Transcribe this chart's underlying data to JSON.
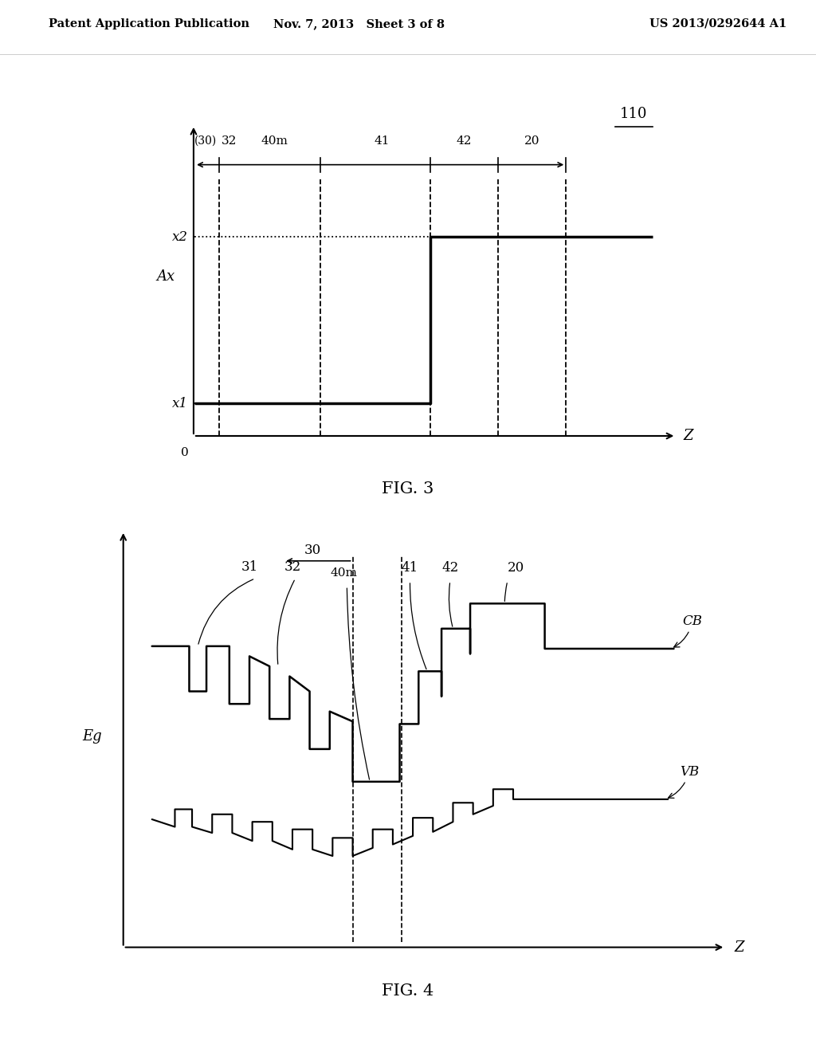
{
  "bg_color": "#ffffff",
  "header_left": "Patent Application Publication",
  "header_mid": "Nov. 7, 2013   Sheet 3 of 8",
  "header_right": "US 2013/0292644 A1",
  "fig3_label": "FIG. 3",
  "fig4_label": "FIG. 4",
  "fig3_ref_110": "110",
  "fig3_ylabel": "Ax",
  "fig3_xlabel": "Z",
  "fig3_y0": "0",
  "fig3_x1": "x1",
  "fig3_x2": "x2",
  "fig3_sections": [
    "(30)",
    "32",
    "40m",
    "41",
    "42",
    "20"
  ],
  "fig4_ylabel": "Eg",
  "fig4_xlabel": "Z",
  "fig4_CB": "CB",
  "fig4_VB": "VB"
}
